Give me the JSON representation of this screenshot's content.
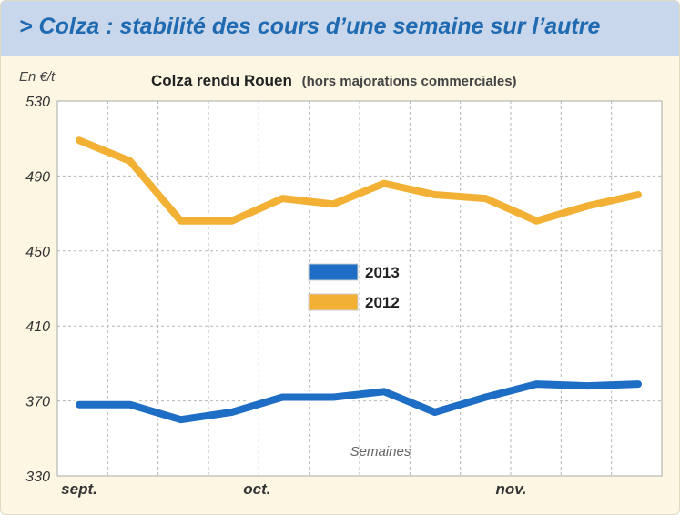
{
  "banner": "> Colza : stabilité des cours d’une semaine sur l’autre",
  "chart_data": {
    "type": "line",
    "title": "Colza rendu Rouen",
    "subtitle": "(hors majorations commerciales)",
    "ylabel": "En €/t",
    "xlabel": "Semaines",
    "ylim": [
      330,
      530
    ],
    "yticks": [
      530,
      490,
      450,
      410,
      370,
      330
    ],
    "x_month_labels": [
      {
        "label": "sept.",
        "week": 0
      },
      {
        "label": "oct.",
        "week": 3.5
      },
      {
        "label": "nov.",
        "week": 8.5
      }
    ],
    "weeks": 12,
    "grid": true,
    "legend_position": "center",
    "series": [
      {
        "name": "2013",
        "color": "#1f6ec5",
        "values": [
          368,
          368,
          360,
          364,
          372,
          372,
          375,
          364,
          372,
          379,
          378,
          379
        ]
      },
      {
        "name": "2012",
        "color": "#f2b134",
        "values": [
          509,
          498,
          466,
          466,
          478,
          475,
          486,
          480,
          478,
          466,
          474,
          480
        ]
      }
    ]
  }
}
